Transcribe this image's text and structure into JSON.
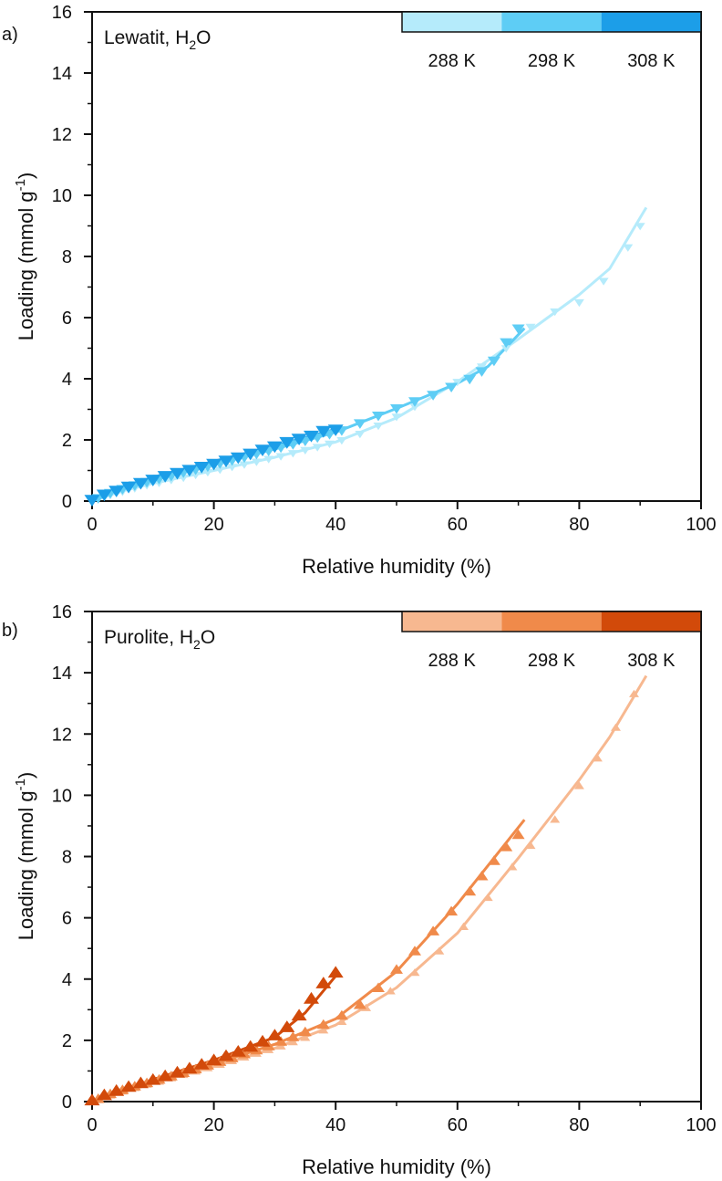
{
  "chart_data": [
    {
      "type": "scatter",
      "panel_label": "a)",
      "title_main": "Lewatit, H",
      "title_sub": "2",
      "title_tail": "O",
      "xlabel": "Relative humidity (%)",
      "ylabel": "Loading (mmol g",
      "ylabel_sup": "-1",
      "ylabel_tail": ")",
      "xlim": [
        0,
        100
      ],
      "ylim": [
        0,
        16
      ],
      "xticks": [
        "0",
        "20",
        "40",
        "60",
        "80",
        "100"
      ],
      "yticks": [
        "0",
        "2",
        "4",
        "6",
        "8",
        "10",
        "12",
        "14",
        "16"
      ],
      "marker": "down-triangle",
      "legend_position": "top-right",
      "series": [
        {
          "name": "288 K",
          "color": "#b5ebfb",
          "points": [
            [
              1,
              0.07
            ],
            [
              3,
              0.2
            ],
            [
              5,
              0.31
            ],
            [
              7,
              0.42
            ],
            [
              9,
              0.52
            ],
            [
              11,
              0.6
            ],
            [
              13,
              0.69
            ],
            [
              15,
              0.77
            ],
            [
              17,
              0.86
            ],
            [
              19,
              0.95
            ],
            [
              21,
              1.03
            ],
            [
              23,
              1.12
            ],
            [
              25,
              1.2
            ],
            [
              27,
              1.29
            ],
            [
              29,
              1.38
            ],
            [
              31,
              1.47
            ],
            [
              33,
              1.57
            ],
            [
              35,
              1.67
            ],
            [
              37,
              1.77
            ],
            [
              39,
              1.88
            ],
            [
              41,
              1.99
            ],
            [
              44,
              2.2
            ],
            [
              47,
              2.47
            ],
            [
              50,
              2.76
            ],
            [
              53,
              3.09
            ],
            [
              56,
              3.44
            ],
            [
              60,
              3.9
            ],
            [
              64,
              4.4
            ],
            [
              68,
              5.0
            ],
            [
              72,
              5.7
            ],
            [
              76,
              6.2
            ],
            [
              80,
              6.5
            ],
            [
              84,
              7.2
            ],
            [
              88,
              8.3
            ],
            [
              90,
              9.0
            ]
          ],
          "fit": [
            [
              0,
              0
            ],
            [
              5,
              0.33
            ],
            [
              10,
              0.58
            ],
            [
              20,
              1.0
            ],
            [
              30,
              1.43
            ],
            [
              40,
              1.93
            ],
            [
              50,
              2.72
            ],
            [
              60,
              3.9
            ],
            [
              70,
              5.3
            ],
            [
              80,
              6.75
            ],
            [
              85,
              7.6
            ],
            [
              91,
              9.6
            ]
          ]
        },
        {
          "name": "298 K",
          "color": "#5ecdf5",
          "points": [
            [
              1,
              0.1
            ],
            [
              3,
              0.27
            ],
            [
              5,
              0.4
            ],
            [
              7,
              0.52
            ],
            [
              9,
              0.63
            ],
            [
              11,
              0.73
            ],
            [
              13,
              0.83
            ],
            [
              15,
              0.94
            ],
            [
              17,
              1.04
            ],
            [
              19,
              1.14
            ],
            [
              21,
              1.24
            ],
            [
              23,
              1.34
            ],
            [
              25,
              1.44
            ],
            [
              27,
              1.55
            ],
            [
              29,
              1.65
            ],
            [
              31,
              1.76
            ],
            [
              33,
              1.87
            ],
            [
              35,
              1.98
            ],
            [
              37,
              2.09
            ],
            [
              39,
              2.2
            ],
            [
              41,
              2.32
            ],
            [
              44,
              2.55
            ],
            [
              47,
              2.8
            ],
            [
              50,
              3.04
            ],
            [
              53,
              3.27
            ],
            [
              56,
              3.48
            ],
            [
              59,
              3.74
            ],
            [
              62,
              4.0
            ],
            [
              64,
              4.25
            ],
            [
              66,
              4.6
            ],
            [
              68,
              5.2
            ],
            [
              70,
              5.65
            ]
          ],
          "fit": [
            [
              0,
              0
            ],
            [
              5,
              0.4
            ],
            [
              10,
              0.68
            ],
            [
              20,
              1.2
            ],
            [
              30,
              1.7
            ],
            [
              40,
              2.25
            ],
            [
              50,
              3.03
            ],
            [
              60,
              3.85
            ],
            [
              65,
              4.4
            ],
            [
              71,
              5.65
            ]
          ]
        },
        {
          "name": "308 K",
          "color": "#1c9ee8",
          "points": [
            [
              0,
              0.05
            ],
            [
              2,
              0.22
            ],
            [
              4,
              0.35
            ],
            [
              6,
              0.48
            ],
            [
              8,
              0.6
            ],
            [
              10,
              0.71
            ],
            [
              12,
              0.83
            ],
            [
              14,
              0.93
            ],
            [
              16,
              1.03
            ],
            [
              18,
              1.13
            ],
            [
              20,
              1.23
            ],
            [
              22,
              1.33
            ],
            [
              24,
              1.44
            ],
            [
              26,
              1.56
            ],
            [
              28,
              1.69
            ],
            [
              30,
              1.8
            ],
            [
              32,
              1.94
            ],
            [
              34,
              2.05
            ],
            [
              36,
              2.15
            ],
            [
              38,
              2.3
            ],
            [
              40,
              2.35
            ]
          ],
          "fit": [
            [
              0,
              0
            ],
            [
              5,
              0.42
            ],
            [
              10,
              0.78
            ],
            [
              20,
              1.3
            ],
            [
              30,
              1.8
            ],
            [
              40,
              2.35
            ]
          ]
        }
      ]
    },
    {
      "type": "scatter",
      "panel_label": "b)",
      "title_main": "Purolite, H",
      "title_sub": "2",
      "title_tail": "O",
      "xlabel": "Relative humidity (%)",
      "ylabel": "Loading (mmol g",
      "ylabel_sup": "-1",
      "ylabel_tail": ")",
      "xlim": [
        0,
        100
      ],
      "ylim": [
        0,
        16
      ],
      "xticks": [
        "0",
        "20",
        "40",
        "60",
        "80",
        "100"
      ],
      "yticks": [
        "0",
        "2",
        "4",
        "6",
        "8",
        "10",
        "12",
        "14",
        "16"
      ],
      "marker": "up-triangle",
      "legend_position": "top-right",
      "series": [
        {
          "name": "288 K",
          "color": "#f7b890",
          "points": [
            [
              1,
              0.05
            ],
            [
              3,
              0.2
            ],
            [
              5,
              0.33
            ],
            [
              7,
              0.44
            ],
            [
              9,
              0.55
            ],
            [
              11,
              0.65
            ],
            [
              13,
              0.76
            ],
            [
              15,
              0.87
            ],
            [
              17,
              0.98
            ],
            [
              19,
              1.09
            ],
            [
              21,
              1.2
            ],
            [
              23,
              1.32
            ],
            [
              25,
              1.44
            ],
            [
              27,
              1.56
            ],
            [
              29,
              1.68
            ],
            [
              31,
              1.8
            ],
            [
              33,
              1.94
            ],
            [
              35,
              2.08
            ],
            [
              38,
              2.32
            ],
            [
              41,
              2.6
            ],
            [
              45,
              3.05
            ],
            [
              49,
              3.6
            ],
            [
              53,
              4.2
            ],
            [
              57,
              4.9
            ],
            [
              61,
              5.7
            ],
            [
              65,
              6.65
            ],
            [
              69,
              7.65
            ],
            [
              72,
              8.35
            ],
            [
              76,
              9.2
            ],
            [
              80,
              10.3
            ],
            [
              83,
              11.2
            ],
            [
              86,
              12.2
            ],
            [
              89,
              13.3
            ]
          ],
          "fit": [
            [
              0,
              0
            ],
            [
              10,
              0.6
            ],
            [
              20,
              1.14
            ],
            [
              30,
              1.74
            ],
            [
              40,
              2.5
            ],
            [
              50,
              3.72
            ],
            [
              60,
              5.5
            ],
            [
              70,
              7.95
            ],
            [
              80,
              10.5
            ],
            [
              85,
              11.9
            ],
            [
              91,
              13.9
            ]
          ]
        },
        {
          "name": "298 K",
          "color": "#f08a4a",
          "points": [
            [
              1,
              0.08
            ],
            [
              3,
              0.24
            ],
            [
              5,
              0.37
            ],
            [
              7,
              0.49
            ],
            [
              9,
              0.6
            ],
            [
              11,
              0.71
            ],
            [
              13,
              0.82
            ],
            [
              15,
              0.93
            ],
            [
              17,
              1.05
            ],
            [
              19,
              1.17
            ],
            [
              21,
              1.29
            ],
            [
              23,
              1.41
            ],
            [
              25,
              1.54
            ],
            [
              27,
              1.67
            ],
            [
              29,
              1.8
            ],
            [
              31,
              1.95
            ],
            [
              33,
              2.1
            ],
            [
              35,
              2.26
            ],
            [
              38,
              2.5
            ],
            [
              41,
              2.8
            ],
            [
              44,
              3.15
            ],
            [
              47,
              3.7
            ],
            [
              50,
              4.3
            ],
            [
              53,
              4.9
            ],
            [
              56,
              5.55
            ],
            [
              59,
              6.2
            ],
            [
              62,
              6.85
            ],
            [
              64,
              7.35
            ],
            [
              66,
              7.85
            ],
            [
              68,
              8.3
            ],
            [
              70,
              8.7
            ]
          ],
          "fit": [
            [
              0,
              0
            ],
            [
              10,
              0.66
            ],
            [
              20,
              1.23
            ],
            [
              30,
              1.87
            ],
            [
              40,
              2.7
            ],
            [
              50,
              4.25
            ],
            [
              60,
              6.45
            ],
            [
              71,
              9.2
            ]
          ]
        },
        {
          "name": "308 K",
          "color": "#d24a0a",
          "points": [
            [
              0,
              0.03
            ],
            [
              2,
              0.2
            ],
            [
              4,
              0.34
            ],
            [
              6,
              0.47
            ],
            [
              8,
              0.59
            ],
            [
              10,
              0.7
            ],
            [
              12,
              0.82
            ],
            [
              14,
              0.94
            ],
            [
              16,
              1.07
            ],
            [
              18,
              1.2
            ],
            [
              20,
              1.34
            ],
            [
              22,
              1.48
            ],
            [
              24,
              1.62
            ],
            [
              26,
              1.78
            ],
            [
              28,
              1.95
            ],
            [
              30,
              2.15
            ],
            [
              32,
              2.42
            ],
            [
              34,
              2.8
            ],
            [
              36,
              3.35
            ],
            [
              38,
              3.85
            ],
            [
              40,
              4.2
            ]
          ],
          "fit": [
            [
              0,
              0
            ],
            [
              10,
              0.72
            ],
            [
              20,
              1.35
            ],
            [
              30,
              2.1
            ],
            [
              35,
              2.9
            ],
            [
              40,
              4.1
            ]
          ]
        }
      ]
    }
  ]
}
